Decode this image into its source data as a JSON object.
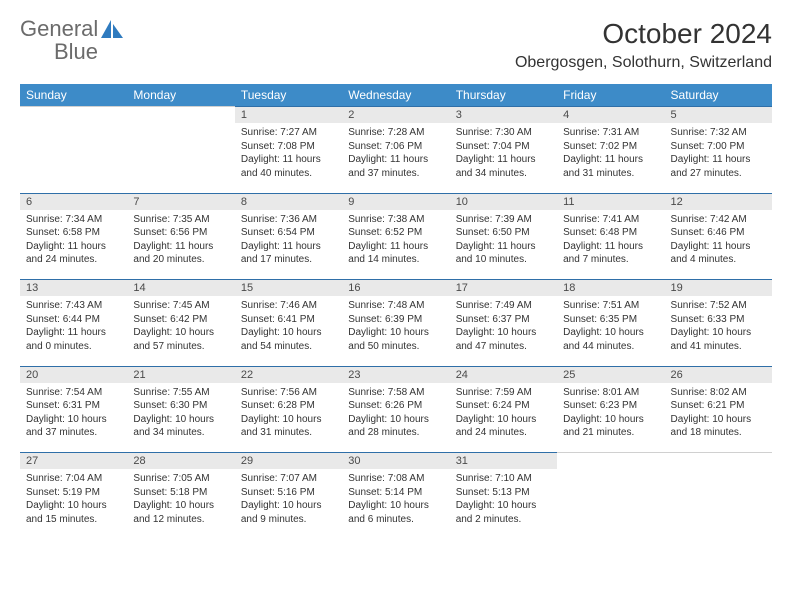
{
  "logo": {
    "word1": "General",
    "word2": "Blue"
  },
  "title": "October 2024",
  "location": "Obergosgen, Solothurn, Switzerland",
  "colors": {
    "header_bg": "#3d8bc8",
    "daynum_bg": "#e9e9e9",
    "row_border": "#2f6fa8",
    "text": "#333333",
    "logo_gray": "#6b6b6b",
    "logo_blue": "#2f7bbf",
    "background": "#ffffff"
  },
  "dayHeaders": [
    "Sunday",
    "Monday",
    "Tuesday",
    "Wednesday",
    "Thursday",
    "Friday",
    "Saturday"
  ],
  "weeks": [
    [
      null,
      null,
      {
        "n": "1",
        "sr": "7:27 AM",
        "ss": "7:08 PM",
        "d1": "Daylight: 11 hours",
        "d2": "and 40 minutes."
      },
      {
        "n": "2",
        "sr": "7:28 AM",
        "ss": "7:06 PM",
        "d1": "Daylight: 11 hours",
        "d2": "and 37 minutes."
      },
      {
        "n": "3",
        "sr": "7:30 AM",
        "ss": "7:04 PM",
        "d1": "Daylight: 11 hours",
        "d2": "and 34 minutes."
      },
      {
        "n": "4",
        "sr": "7:31 AM",
        "ss": "7:02 PM",
        "d1": "Daylight: 11 hours",
        "d2": "and 31 minutes."
      },
      {
        "n": "5",
        "sr": "7:32 AM",
        "ss": "7:00 PM",
        "d1": "Daylight: 11 hours",
        "d2": "and 27 minutes."
      }
    ],
    [
      {
        "n": "6",
        "sr": "7:34 AM",
        "ss": "6:58 PM",
        "d1": "Daylight: 11 hours",
        "d2": "and 24 minutes."
      },
      {
        "n": "7",
        "sr": "7:35 AM",
        "ss": "6:56 PM",
        "d1": "Daylight: 11 hours",
        "d2": "and 20 minutes."
      },
      {
        "n": "8",
        "sr": "7:36 AM",
        "ss": "6:54 PM",
        "d1": "Daylight: 11 hours",
        "d2": "and 17 minutes."
      },
      {
        "n": "9",
        "sr": "7:38 AM",
        "ss": "6:52 PM",
        "d1": "Daylight: 11 hours",
        "d2": "and 14 minutes."
      },
      {
        "n": "10",
        "sr": "7:39 AM",
        "ss": "6:50 PM",
        "d1": "Daylight: 11 hours",
        "d2": "and 10 minutes."
      },
      {
        "n": "11",
        "sr": "7:41 AM",
        "ss": "6:48 PM",
        "d1": "Daylight: 11 hours",
        "d2": "and 7 minutes."
      },
      {
        "n": "12",
        "sr": "7:42 AM",
        "ss": "6:46 PM",
        "d1": "Daylight: 11 hours",
        "d2": "and 4 minutes."
      }
    ],
    [
      {
        "n": "13",
        "sr": "7:43 AM",
        "ss": "6:44 PM",
        "d1": "Daylight: 11 hours",
        "d2": "and 0 minutes."
      },
      {
        "n": "14",
        "sr": "7:45 AM",
        "ss": "6:42 PM",
        "d1": "Daylight: 10 hours",
        "d2": "and 57 minutes."
      },
      {
        "n": "15",
        "sr": "7:46 AM",
        "ss": "6:41 PM",
        "d1": "Daylight: 10 hours",
        "d2": "and 54 minutes."
      },
      {
        "n": "16",
        "sr": "7:48 AM",
        "ss": "6:39 PM",
        "d1": "Daylight: 10 hours",
        "d2": "and 50 minutes."
      },
      {
        "n": "17",
        "sr": "7:49 AM",
        "ss": "6:37 PM",
        "d1": "Daylight: 10 hours",
        "d2": "and 47 minutes."
      },
      {
        "n": "18",
        "sr": "7:51 AM",
        "ss": "6:35 PM",
        "d1": "Daylight: 10 hours",
        "d2": "and 44 minutes."
      },
      {
        "n": "19",
        "sr": "7:52 AM",
        "ss": "6:33 PM",
        "d1": "Daylight: 10 hours",
        "d2": "and 41 minutes."
      }
    ],
    [
      {
        "n": "20",
        "sr": "7:54 AM",
        "ss": "6:31 PM",
        "d1": "Daylight: 10 hours",
        "d2": "and 37 minutes."
      },
      {
        "n": "21",
        "sr": "7:55 AM",
        "ss": "6:30 PM",
        "d1": "Daylight: 10 hours",
        "d2": "and 34 minutes."
      },
      {
        "n": "22",
        "sr": "7:56 AM",
        "ss": "6:28 PM",
        "d1": "Daylight: 10 hours",
        "d2": "and 31 minutes."
      },
      {
        "n": "23",
        "sr": "7:58 AM",
        "ss": "6:26 PM",
        "d1": "Daylight: 10 hours",
        "d2": "and 28 minutes."
      },
      {
        "n": "24",
        "sr": "7:59 AM",
        "ss": "6:24 PM",
        "d1": "Daylight: 10 hours",
        "d2": "and 24 minutes."
      },
      {
        "n": "25",
        "sr": "8:01 AM",
        "ss": "6:23 PM",
        "d1": "Daylight: 10 hours",
        "d2": "and 21 minutes."
      },
      {
        "n": "26",
        "sr": "8:02 AM",
        "ss": "6:21 PM",
        "d1": "Daylight: 10 hours",
        "d2": "and 18 minutes."
      }
    ],
    [
      {
        "n": "27",
        "sr": "7:04 AM",
        "ss": "5:19 PM",
        "d1": "Daylight: 10 hours",
        "d2": "and 15 minutes."
      },
      {
        "n": "28",
        "sr": "7:05 AM",
        "ss": "5:18 PM",
        "d1": "Daylight: 10 hours",
        "d2": "and 12 minutes."
      },
      {
        "n": "29",
        "sr": "7:07 AM",
        "ss": "5:16 PM",
        "d1": "Daylight: 10 hours",
        "d2": "and 9 minutes."
      },
      {
        "n": "30",
        "sr": "7:08 AM",
        "ss": "5:14 PM",
        "d1": "Daylight: 10 hours",
        "d2": "and 6 minutes."
      },
      {
        "n": "31",
        "sr": "7:10 AM",
        "ss": "5:13 PM",
        "d1": "Daylight: 10 hours",
        "d2": "and 2 minutes."
      },
      null,
      null
    ]
  ],
  "labels": {
    "sunrise": "Sunrise: ",
    "sunset": "Sunset: "
  }
}
